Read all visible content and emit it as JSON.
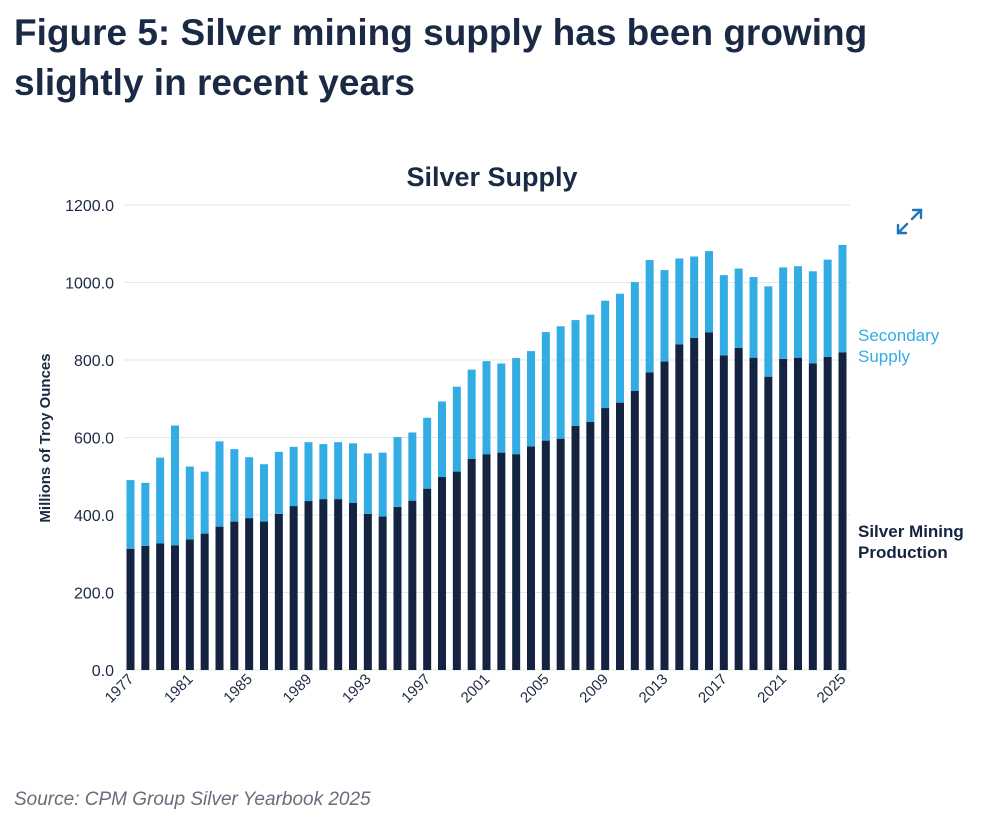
{
  "heading": "Figure 5: Silver mining supply has been growing slightly in recent years",
  "source": "Source: CPM Group Silver Yearbook 2025",
  "icons": {
    "expand": "expand-arrows-icon"
  },
  "colors": {
    "mining": "#14233f",
    "secondary": "#33ace3",
    "grid": "#e3e6ea",
    "text": "#1b2a44",
    "label_secondary": "#33ace3"
  },
  "chart_data": {
    "type": "bar",
    "stacked": true,
    "title": "Silver Supply",
    "xlabel": "",
    "ylabel": "Millions of Troy Ounces",
    "ylim": [
      0,
      1200
    ],
    "yticks": [
      "0.0",
      "200.0",
      "400.0",
      "600.0",
      "800.0",
      "1000.0",
      "1200.0"
    ],
    "xtick_labels": [
      "1977",
      "1981",
      "1985",
      "1989",
      "1993",
      "1997",
      "2001",
      "2005",
      "2009",
      "2013",
      "2017",
      "2021",
      "2025"
    ],
    "grid": true,
    "legend": "right",
    "categories": [
      1977,
      1978,
      1979,
      1980,
      1981,
      1982,
      1983,
      1984,
      1985,
      1986,
      1987,
      1988,
      1989,
      1990,
      1991,
      1992,
      1993,
      1994,
      1995,
      1996,
      1997,
      1998,
      1999,
      2000,
      2001,
      2002,
      2003,
      2004,
      2005,
      2006,
      2007,
      2008,
      2009,
      2010,
      2011,
      2012,
      2013,
      2014,
      2015,
      2016,
      2017,
      2018,
      2019,
      2020,
      2021,
      2022,
      2023,
      2024,
      2025
    ],
    "series": [
      {
        "name": "Silver Mining Production",
        "values": [
          313,
          320,
          327,
          322,
          337,
          352,
          370,
          383,
          392,
          383,
          403,
          423,
          436,
          441,
          441,
          431,
          403,
          396,
          421,
          437,
          468,
          498,
          512,
          545,
          557,
          561,
          557,
          577,
          592,
          597,
          630,
          640,
          676,
          690,
          720,
          768,
          796,
          840,
          857,
          871,
          812,
          831,
          806,
          757,
          803,
          806,
          791,
          808,
          820
        ]
      },
      {
        "name": "Secondary Supply",
        "values": [
          177,
          163,
          221,
          309,
          188,
          160,
          220,
          187,
          157,
          148,
          160,
          153,
          152,
          142,
          147,
          154,
          156,
          165,
          180,
          176,
          183,
          195,
          219,
          230,
          240,
          230,
          248,
          246,
          280,
          290,
          273,
          277,
          277,
          281,
          281,
          290,
          236,
          222,
          210,
          210,
          207,
          205,
          208,
          233,
          236,
          236,
          238,
          251,
          277
        ]
      }
    ]
  }
}
